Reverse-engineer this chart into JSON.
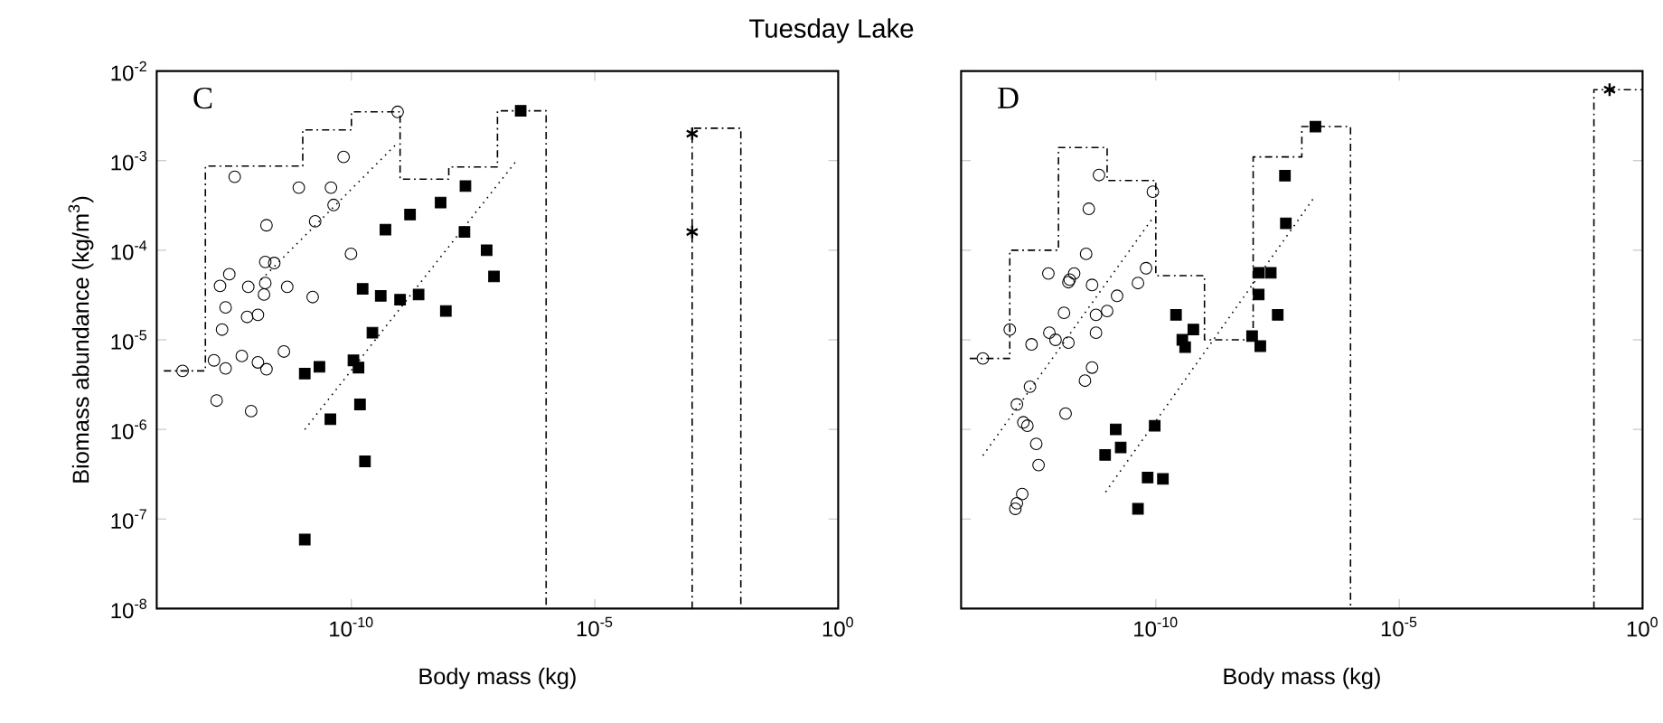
{
  "chart_data": [
    {
      "type": "scatter",
      "title": "Tuesday Lake",
      "xlabel": "Body mass (kg)",
      "ylabel": "Biomass abundance (kg/m$^{3}$)",
      "annotations": [
        "C"
      ],
      "log": "xy",
      "xlim": [
        1e-14,
        1
      ],
      "ylim": [
        1e-08,
        0.01
      ],
      "xticks": [
        {
          "value": 1e-10,
          "label": "10$^{-10}$"
        },
        {
          "value": 1e-05,
          "label": "10$^{-5}$"
        },
        {
          "value": 1,
          "label": "10$^{0}$"
        }
      ],
      "yticks": [
        {
          "value": 1e-08,
          "label": "10$^{-8}$"
        },
        {
          "value": 1e-07,
          "label": "10$^{-7}$"
        },
        {
          "value": 1e-06,
          "label": "10$^{-6}$"
        },
        {
          "value": 1e-05,
          "label": "10$^{-5}$"
        },
        {
          "value": 0.0001,
          "label": "10$^{-4}$"
        },
        {
          "value": 0.001,
          "label": "10$^{-3}$"
        },
        {
          "value": 0.01,
          "label": "10$^{-2}$"
        }
      ],
      "series": [
        {
          "type": "line",
          "color": "#000000",
          "marker": "none",
          "line_style": "dashed",
          "x": [
            1.4e-14,
            1e-13,
            1e-13,
            1e-11,
            1e-11,
            1e-10,
            1e-10,
            1e-09,
            1e-09,
            1e-08,
            1e-08,
            1e-07,
            1e-07,
            1e-06,
            1e-06
          ],
          "values": [
            4.5e-06,
            4.5e-06,
            0.00087,
            0.00087,
            0.0022,
            0.0022,
            0.0035,
            0.0035,
            0.00062,
            0.00062,
            0.00085,
            0.00085,
            0.0036,
            0.0036,
            1e-08
          ]
        },
        {
          "type": "line",
          "color": "#000000",
          "marker": "none",
          "line_style": "dashed",
          "x": [
            0.001,
            0.001,
            0.01,
            0.01
          ],
          "values": [
            1e-08,
            0.0023,
            0.0023,
            1e-08
          ]
        },
        {
          "type": "line",
          "color": "#000000",
          "marker": "none",
          "line_style": "dotted",
          "x": [
            1.4e-12,
            9.1e-10
          ],
          "values": [
            4.7e-05,
            0.0016
          ]
        },
        {
          "type": "line",
          "color": "#000000",
          "marker": "none",
          "line_style": "dotted",
          "x": [
            1.1e-11,
            2.4e-07
          ],
          "values": [
            1e-06,
            0.00098
          ]
        },
        {
          "color": "#000000",
          "marker": "circle",
          "x": [
            3.4e-14,
            1.5e-13,
            2.6e-13,
            1.7e-13,
            8.7e-13,
            4e-13,
            8.9e-10,
            6.9e-11,
            8.3e-12,
            3.8e-11,
            4.3e-11,
            1.8e-12,
            1.8e-11,
            9.8e-11,
            1.7e-12,
            2.6e-12,
            3.1e-13,
            2e-13,
            7.6e-13,
            1.7e-12,
            4.8e-12,
            1.6e-12,
            2.6e-13,
            1.6e-11,
            7.2e-13,
            1.2e-12,
            2.2e-13,
            5.6e-13,
            1.2e-12,
            1.8e-12,
            4.1e-12
          ],
          "values": [
            4.5e-06,
            5.9e-06,
            4.8e-06,
            2.1e-06,
            1.6e-06,
            0.00066,
            0.0035,
            0.0011,
            0.0005,
            0.0005,
            0.00032,
            0.00019,
            0.00021,
            9.1e-05,
            7.4e-05,
            7.2e-05,
            5.4e-05,
            4e-05,
            3.9e-05,
            4.3e-05,
            3.9e-05,
            3.2e-05,
            2.3e-05,
            3e-05,
            1.8e-05,
            1.9e-05,
            1.3e-05,
            6.6e-06,
            5.6e-06,
            4.7e-06,
            7.4e-06
          ]
        },
        {
          "color": "#000000",
          "marker": "square",
          "x": [
            1.1e-11,
            2.2e-11,
            1.1e-10,
            1.4e-10,
            1.5e-10,
            3.7e-11,
            1.9e-10,
            1.1e-11,
            2.7e-10,
            1.7e-10,
            4e-10,
            1e-09,
            2.4e-09,
            8.7e-09,
            5e-10,
            1.6e-09,
            6.8e-09,
            2.2e-08,
            2.1e-08,
            6e-08,
            8.5e-08,
            3e-07
          ],
          "values": [
            4.2e-06,
            5e-06,
            5.9e-06,
            4.9e-06,
            1.9e-06,
            1.3e-06,
            4.4e-07,
            5.9e-08,
            1.2e-05,
            3.7e-05,
            3.1e-05,
            2.8e-05,
            3.2e-05,
            2.1e-05,
            0.00017,
            0.00025,
            0.00034,
            0.00052,
            0.00016,
            0.0001,
            5.1e-05,
            0.0036
          ]
        },
        {
          "color": "#000000",
          "marker": "cross",
          "x": [
            0.001,
            0.001
          ],
          "values": [
            0.002,
            0.00016
          ]
        }
      ]
    },
    {
      "type": "scatter",
      "xlabel": "Body mass (kg)",
      "annotations": [
        "D"
      ],
      "log": "xy",
      "tick_labels": "x",
      "xlim": [
        1e-14,
        1
      ],
      "ylim": [
        1e-08,
        0.01
      ],
      "xticks": [
        {
          "value": 1e-10,
          "label": "10$^{-10}$"
        },
        {
          "value": 1e-05,
          "label": "10$^{-5}$"
        },
        {
          "value": 1,
          "label": "10$^{0}$"
        }
      ],
      "yticks": [
        {
          "value": 1e-08,
          "label": null
        },
        {
          "value": 1e-07,
          "label": null
        },
        {
          "value": 1e-06,
          "label": null
        },
        {
          "value": 1e-05,
          "label": null
        },
        {
          "value": 0.0001,
          "label": null
        },
        {
          "value": 0.001,
          "label": null
        },
        {
          "value": 0.01,
          "label": null
        }
      ],
      "series": [
        {
          "type": "line",
          "color": "#000000",
          "marker": "none",
          "line_style": "dashed",
          "x": [
            1.5e-14,
            1e-13,
            1e-13,
            1e-12,
            1e-12,
            1e-11,
            1e-11,
            1e-10,
            1e-10,
            1e-09,
            1e-09,
            1e-08,
            1e-08,
            1e-07,
            1e-07,
            1e-06,
            1e-06
          ],
          "values": [
            6.2e-06,
            6.2e-06,
            0.0001,
            0.0001,
            0.0014,
            0.0014,
            0.0006,
            0.0006,
            5.2e-05,
            5.2e-05,
            1e-05,
            1e-05,
            0.0011,
            0.0011,
            0.0024,
            0.0024,
            1e-08
          ]
        },
        {
          "type": "line",
          "color": "#000000",
          "marker": "none",
          "line_style": "dashed",
          "x": [
            0.1,
            0.1,
            1
          ],
          "values": [
            1e-08,
            0.0062,
            0.0062
          ]
        },
        {
          "type": "line",
          "color": "#000000",
          "marker": "none",
          "line_style": "dotted",
          "x": [
            2.8e-14,
            8.7e-11
          ],
          "values": [
            5.1e-07,
            0.00023
          ]
        },
        {
          "type": "line",
          "color": "#000000",
          "marker": "none",
          "line_style": "dotted",
          "x": [
            9.3e-12,
            1.8e-07
          ],
          "values": [
            2e-07,
            0.00039
          ]
        },
        {
          "color": "#000000",
          "marker": "circle",
          "x": [
            2.8e-14,
            1e-13,
            2.8e-13,
            6.2e-13,
            1.6e-12,
            2.1e-12,
            1.7e-12,
            4.9e-12,
            3.7e-12,
            6.8e-12,
            4.2e-12,
            8.7e-11,
            6.3e-11,
            4.3e-11,
            1.6e-11,
            1e-11,
            5.9e-12,
            5.9e-12,
            1.3e-12,
            6.5e-13,
            8.7e-13,
            1.6e-12,
            4.9e-12,
            3.5e-12,
            2.6e-13,
            1.4e-13,
            1.9e-13,
            2.3e-13,
            3.5e-13,
            3.9e-13,
            1.4e-12,
            1.3e-13,
            1.4e-13,
            1.8e-13
          ],
          "values": [
            6.2e-06,
            1.3e-05,
            8.9e-06,
            5.5e-05,
            4.4e-05,
            5.5e-05,
            4.7e-05,
            4.1e-05,
            9.1e-05,
            0.00069,
            0.00029,
            0.00045,
            6.3e-05,
            4.3e-05,
            3.1e-05,
            2.1e-05,
            1.9e-05,
            1.2e-05,
            2e-05,
            1.2e-05,
            1e-05,
            9.3e-06,
            4.9e-06,
            3.5e-06,
            3e-06,
            1.9e-06,
            1.2e-06,
            1.1e-06,
            6.9e-07,
            4e-07,
            1.5e-06,
            1.3e-07,
            1.5e-07,
            1.9e-07
          ]
        },
        {
          "color": "#000000",
          "marker": "square",
          "x": [
            2.6e-10,
            3.5e-10,
            4e-10,
            5.9e-10,
            1.5e-11,
            9.1e-12,
            1.9e-11,
            9.5e-11,
            6.8e-11,
            1.4e-10,
            4.3e-11,
            9.5e-09,
            1.4e-08,
            1.3e-08,
            1.3e-08,
            2.3e-08,
            3.2e-08,
            4.7e-08,
            4.5e-08,
            1.9e-07
          ],
          "values": [
            1.9e-05,
            1e-05,
            8.3e-06,
            1.3e-05,
            1e-06,
            5.2e-07,
            6.3e-07,
            1.1e-06,
            2.9e-07,
            2.8e-07,
            1.3e-07,
            1.1e-05,
            8.5e-06,
            3.2e-05,
            5.6e-05,
            5.6e-05,
            1.9e-05,
            0.0002,
            0.00068,
            0.0024
          ]
        },
        {
          "color": "#000000",
          "marker": "cross",
          "x": [
            0.21
          ],
          "values": [
            0.0062
          ]
        }
      ]
    }
  ]
}
